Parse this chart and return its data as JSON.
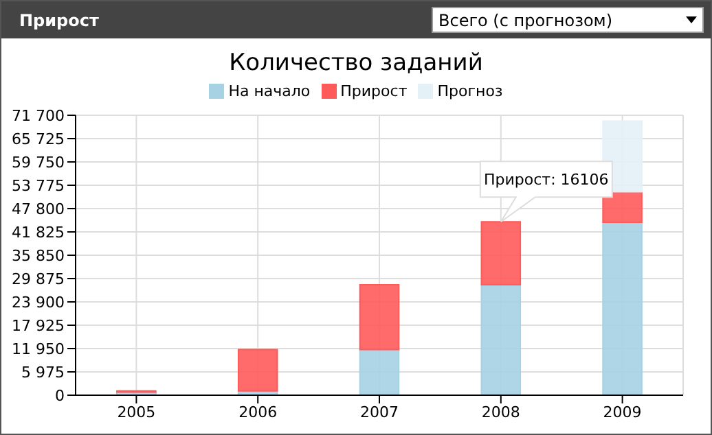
{
  "chart_data": {
    "type": "bar",
    "title": "Количество заданий",
    "categories": [
      "2005",
      "2006",
      "2007",
      "2008",
      "2009"
    ],
    "stacked": true,
    "series": [
      {
        "name": "На начало",
        "color": "#a6d2e3",
        "values": [
          800,
          1100,
          11700,
          28300,
          44300
        ]
      },
      {
        "name": "Прирост",
        "color": "#ff5a5a",
        "values": [
          300,
          10600,
          16600,
          16106,
          7800
        ]
      },
      {
        "name": "Прогноз",
        "color": "#e4f1f7",
        "values": [
          null,
          null,
          null,
          null,
          18100
        ]
      }
    ],
    "ylim": [
      0,
      71700
    ],
    "yticks": [
      0,
      {
        "value": 5975,
        "label": "5 975"
      },
      {
        "value": 11950,
        "label": "11 950"
      },
      {
        "value": 17925,
        "label": "17 925"
      },
      {
        "value": 23900,
        "label": "23 900"
      },
      {
        "value": 29875,
        "label": "29 875"
      },
      {
        "value": 35850,
        "label": "35 850"
      },
      {
        "value": 41825,
        "label": "41 825"
      },
      {
        "value": 47800,
        "label": "47 800"
      },
      {
        "value": 53775,
        "label": "53 775"
      },
      {
        "value": 59750,
        "label": "59 750"
      },
      {
        "value": 65725,
        "label": "65 725"
      },
      {
        "value": 71700,
        "label": "71 700"
      }
    ],
    "grid": true,
    "legend": "top",
    "annotations": [
      "Прирост",
      "Всего (с прогнозом)",
      {
        "text": "Прирост: 16106",
        "x": "2008",
        "y": 44406
      }
    ]
  }
}
